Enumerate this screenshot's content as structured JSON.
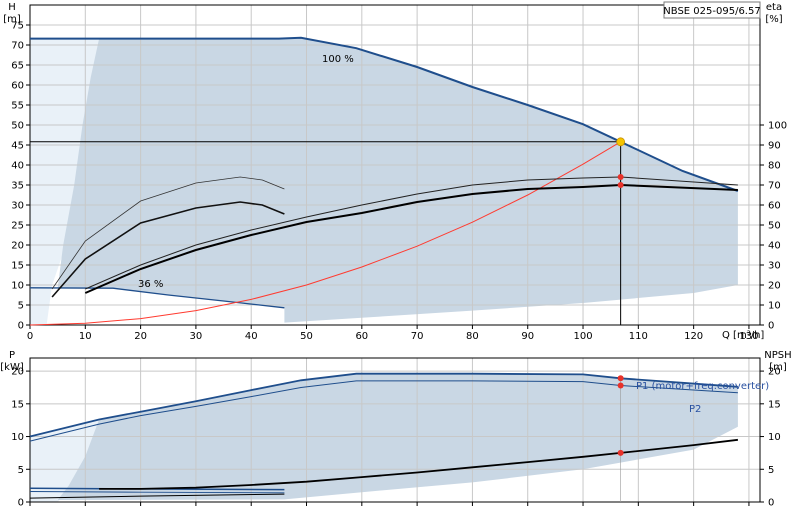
{
  "title_box": "NBSE 025-095/6.57",
  "colors": {
    "envelope_fill": "#c9d7e4",
    "light_fill": "#e9f1f8",
    "head_curve": "#1f4e8c",
    "eff_curve": "#000000",
    "system_curve": "#ff3b30",
    "marker": "#e8322a",
    "duty_marker": "#f5c400"
  },
  "chart_data": [
    {
      "type": "line",
      "name": "head-efficiency",
      "xlabel": "Q [m³/h]",
      "ylabel_left": "H",
      "ylabel_left_unit": "[m]",
      "ylabel_right": "eta",
      "ylabel_right_unit": "[%]",
      "xlim": [
        0,
        132
      ],
      "ylim_left": [
        0,
        80
      ],
      "ylim_right": [
        0,
        160
      ],
      "x_ticks": [
        0,
        10,
        20,
        30,
        40,
        50,
        60,
        70,
        80,
        90,
        100,
        110,
        120,
        130
      ],
      "y_ticks_left": [
        0,
        5,
        10,
        15,
        20,
        25,
        30,
        35,
        40,
        45,
        50,
        55,
        60,
        65,
        70,
        75
      ],
      "y_ticks_right": [
        0,
        10,
        20,
        30,
        40,
        50,
        60,
        70,
        80,
        90,
        100
      ],
      "grid": true,
      "annotations": [
        {
          "text": "100 %",
          "x": 58,
          "y": 75
        },
        {
          "text": "36 %",
          "x": 23,
          "y": 11
        }
      ],
      "duty_point": {
        "q": 106.8,
        "h": 45.8
      },
      "series": [
        {
          "key": "head_100",
          "axis": "left",
          "x": [
            0,
            12.5,
            45,
            49,
            59,
            70,
            80,
            90,
            100,
            106.8,
            118,
            128
          ],
          "y": [
            71.6,
            71.6,
            71.6,
            71.8,
            69.2,
            64.5,
            59.5,
            55,
            50.2,
            45.8,
            38.5,
            33.5
          ]
        },
        {
          "key": "head_36",
          "axis": "left",
          "x": [
            0,
            15,
            25,
            35,
            46
          ],
          "y": [
            9.3,
            9.2,
            7.5,
            6,
            4.3
          ]
        },
        {
          "key": "eta_outer",
          "axis": "right",
          "x": [
            10,
            20,
            30,
            40,
            50,
            60,
            70,
            80,
            90,
            100,
            106.8,
            128
          ],
          "y": [
            18,
            30,
            40,
            47.5,
            54,
            60,
            65.5,
            70,
            72.5,
            73.5,
            74,
            70
          ]
        },
        {
          "key": "eta_inner",
          "axis": "right",
          "x": [
            10,
            20,
            30,
            40,
            50,
            60,
            70,
            80,
            90,
            100,
            106.8,
            128
          ],
          "y": [
            16,
            28,
            37.5,
            45,
            51.5,
            56,
            61.5,
            65.5,
            68,
            69,
            70,
            67.5
          ]
        },
        {
          "key": "eta_small_outer",
          "axis": "right",
          "x": [
            4,
            10,
            20,
            30,
            38,
            42,
            46
          ],
          "y": [
            18,
            42,
            62,
            71,
            74,
            72.5,
            68
          ]
        },
        {
          "key": "eta_small_inner",
          "axis": "right",
          "x": [
            4,
            10,
            20,
            30,
            38,
            42,
            46
          ],
          "y": [
            14,
            33,
            51,
            58.5,
            61.5,
            60,
            55.5
          ]
        },
        {
          "key": "system_curve",
          "axis": "left",
          "x": [
            0,
            10,
            20,
            30,
            40,
            50,
            60,
            70,
            80,
            90,
            100,
            106.8
          ],
          "y": [
            0,
            0.45,
            1.6,
            3.6,
            6.4,
            10,
            14.5,
            19.7,
            25.7,
            32.5,
            40.2,
            45.8
          ]
        }
      ],
      "markers": [
        {
          "axis": "right",
          "x": 106.8,
          "y": 74
        },
        {
          "axis": "right",
          "x": 106.8,
          "y": 70
        }
      ]
    },
    {
      "type": "line",
      "name": "power-npsh",
      "ylabel_left": "P",
      "ylabel_left_unit": "[kW]",
      "ylabel_right": "NPSH",
      "ylabel_right_unit": "[m]",
      "xlim": [
        0,
        132
      ],
      "ylim_left": [
        0,
        22
      ],
      "ylim_right": [
        0,
        22
      ],
      "y_ticks_left": [
        0,
        5,
        10,
        15,
        20
      ],
      "y_ticks_right": [
        0,
        5,
        10,
        15,
        20
      ],
      "grid": true,
      "legend": [
        {
          "key": "p1",
          "label": "P1 (motor+freq.converter)"
        },
        {
          "key": "p2",
          "label": "P2"
        }
      ],
      "series": [
        {
          "key": "p1",
          "axis": "left",
          "x": [
            0,
            12.5,
            20,
            30,
            40,
            49,
            59,
            80,
            100,
            106.8,
            128
          ],
          "y": [
            10,
            12.6,
            13.8,
            15.4,
            17.1,
            18.6,
            19.6,
            19.6,
            19.5,
            18.9,
            17.6
          ]
        },
        {
          "key": "p2",
          "axis": "left",
          "x": [
            0,
            12.5,
            20,
            30,
            40,
            49,
            59,
            80,
            100,
            106.8,
            128
          ],
          "y": [
            9.3,
            11.9,
            13.2,
            14.6,
            16.1,
            17.5,
            18.5,
            18.5,
            18.4,
            17.8,
            16.7
          ]
        },
        {
          "key": "p1_min",
          "axis": "left",
          "x": [
            0,
            20,
            46
          ],
          "y": [
            2.1,
            2.0,
            1.9
          ]
        },
        {
          "key": "p2_min",
          "axis": "left",
          "x": [
            0,
            20,
            46
          ],
          "y": [
            1.6,
            1.5,
            1.4
          ]
        },
        {
          "key": "npsh",
          "axis": "right",
          "x": [
            12.5,
            20,
            30,
            40,
            50,
            60,
            70,
            80,
            90,
            100,
            106.8,
            120,
            128
          ],
          "y": [
            2,
            2,
            2.2,
            2.6,
            3.1,
            3.8,
            4.5,
            5.3,
            6.1,
            6.9,
            7.5,
            8.7,
            9.5
          ]
        },
        {
          "key": "npsh_low",
          "axis": "right",
          "x": [
            0,
            20,
            46
          ],
          "y": [
            0.6,
            0.9,
            1.2
          ]
        }
      ],
      "markers": [
        {
          "axis": "left",
          "x": 106.8,
          "y": 18.9
        },
        {
          "axis": "left",
          "x": 106.8,
          "y": 17.8
        },
        {
          "axis": "right",
          "x": 106.8,
          "y": 7.5
        }
      ]
    }
  ]
}
